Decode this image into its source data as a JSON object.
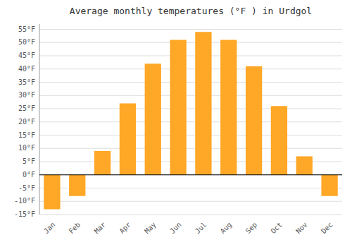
{
  "chart_data": {
    "type": "bar",
    "title": "Average monthly temperatures (°F ) in Urdgol",
    "categories": [
      "Jan",
      "Feb",
      "Mar",
      "Apr",
      "May",
      "Jun",
      "Jul",
      "Aug",
      "Sep",
      "Oct",
      "Nov",
      "Dec"
    ],
    "values": [
      -13,
      -8,
      9,
      27,
      42,
      51,
      54,
      51,
      41,
      26,
      7,
      -8
    ],
    "color": "#FFA726",
    "ylim": [
      -15,
      57
    ],
    "yticks": [
      {
        "value": -15,
        "label": "-15°F"
      },
      {
        "value": -10,
        "label": "-10°F"
      },
      {
        "value": -5,
        "label": "-5°F"
      },
      {
        "value": 0,
        "label": "0°F"
      },
      {
        "value": 5,
        "label": "5°F"
      },
      {
        "value": 10,
        "label": "10°F"
      },
      {
        "value": 15,
        "label": "15°F"
      },
      {
        "value": 20,
        "label": "20°F"
      },
      {
        "value": 25,
        "label": "25°F"
      },
      {
        "value": 30,
        "label": "30°F"
      },
      {
        "value": 35,
        "label": "35°F"
      },
      {
        "value": 40,
        "label": "40°F"
      },
      {
        "value": 45,
        "label": "45°F"
      },
      {
        "value": 50,
        "label": "50°F"
      },
      {
        "value": 55,
        "label": "55°F"
      }
    ],
    "grid": true
  }
}
